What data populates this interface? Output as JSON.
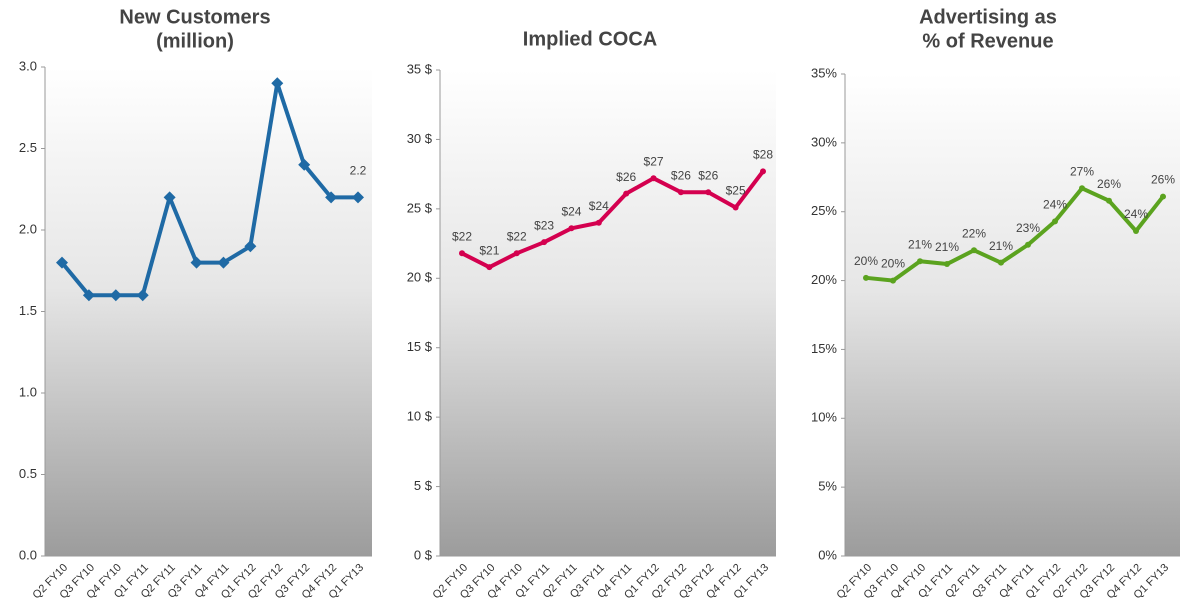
{
  "chart_data": [
    {
      "type": "line",
      "title": [
        "New Customers",
        "(million)"
      ],
      "categories": [
        "Q2 FY10",
        "Q3 FY10",
        "Q4 FY10",
        "Q1 FY11",
        "Q2 FY11",
        "Q3 FY11",
        "Q4 FY11",
        "Q1 FY12",
        "Q2 FY12",
        "Q3 FY12",
        "Q4 FY12",
        "Q1 FY13"
      ],
      "series": [
        {
          "color": "#1f6aa5",
          "values": [
            1.8,
            1.6,
            1.6,
            1.6,
            2.2,
            1.8,
            1.8,
            1.9,
            2.9,
            2.4,
            2.2,
            2.2
          ],
          "value_labels": [
            null,
            null,
            null,
            null,
            null,
            null,
            null,
            null,
            null,
            null,
            null,
            "2.2"
          ]
        }
      ],
      "marker": "diamond",
      "ylim": [
        0,
        3
      ],
      "yticks": [
        {
          "value": 0,
          "label": "0.0"
        },
        0.5,
        {
          "value": 1,
          "label": "1.0"
        },
        1.5,
        {
          "value": 2,
          "label": "2.0"
        },
        2.5,
        {
          "value": 3,
          "label": "3.0"
        }
      ]
    },
    {
      "type": "line",
      "title": [
        "Implied COCA"
      ],
      "categories": [
        "Q2 FY10",
        "Q3 FY10",
        "Q4 FY10",
        "Q1 FY11",
        "Q2 FY11",
        "Q3 FY11",
        "Q4 FY11",
        "Q1 FY12",
        "Q2 FY12",
        "Q3 FY12",
        "Q4 FY12",
        "Q1 FY13"
      ],
      "series": [
        {
          "color": "#d4004f",
          "values": [
            21.8,
            20.8,
            21.8,
            22.6,
            23.6,
            24.0,
            26.1,
            27.2,
            26.2,
            26.2,
            25.1,
            27.7
          ],
          "value_labels": [
            "$22",
            "$21",
            "$22",
            "$23",
            "$24",
            "$24",
            "$26",
            "$27",
            "$26",
            "$26",
            "$25",
            "$28"
          ]
        }
      ],
      "marker": "dot",
      "ylim": [
        0,
        35
      ],
      "yticks": [
        {
          "value": 0,
          "label": "0 $"
        },
        {
          "value": 5,
          "label": "5 $"
        },
        {
          "value": 10,
          "label": "10 $"
        },
        {
          "value": 15,
          "label": "15 $"
        },
        {
          "value": 20,
          "label": "20 $"
        },
        {
          "value": 25,
          "label": "25 $"
        },
        {
          "value": 30,
          "label": "30 $"
        },
        {
          "value": 35,
          "label": "35 $"
        }
      ]
    },
    {
      "type": "line",
      "title": [
        "Advertising as",
        "% of Revenue"
      ],
      "categories": [
        "Q2 FY10",
        "Q3 FY10",
        "Q4 FY10",
        "Q1 FY11",
        "Q2 FY11",
        "Q3 FY11",
        "Q4 FY11",
        "Q1 FY12",
        "Q2 FY12",
        "Q3 FY12",
        "Q4 FY12",
        "Q1 FY13"
      ],
      "series": [
        {
          "color": "#5ba31f",
          "values": [
            20.2,
            20.0,
            21.4,
            21.2,
            22.2,
            21.3,
            22.6,
            24.3,
            26.7,
            25.8,
            23.6,
            26.1
          ],
          "value_labels": [
            "20%",
            "20%",
            "21%",
            "21%",
            "22%",
            "21%",
            "23%",
            "24%",
            "27%",
            "26%",
            "24%",
            "26%"
          ]
        }
      ],
      "marker": "dot",
      "ylim": [
        0,
        35
      ],
      "yticks": [
        {
          "value": 0,
          "label": "0%"
        },
        {
          "value": 5,
          "label": "5%"
        },
        {
          "value": 10,
          "label": "10%"
        },
        {
          "value": 15,
          "label": "15%"
        },
        {
          "value": 20,
          "label": "20%"
        },
        {
          "value": 25,
          "label": "25%"
        },
        {
          "value": 30,
          "label": "30%"
        },
        {
          "value": 35,
          "label": "35%"
        }
      ]
    }
  ]
}
